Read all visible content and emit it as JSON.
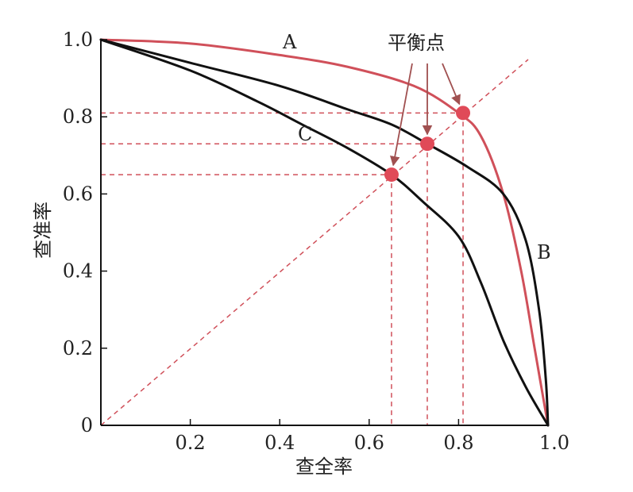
{
  "chart_data": {
    "type": "line",
    "xlabel": "查全率",
    "ylabel": "查准率",
    "xlim": [
      0,
      1
    ],
    "ylim": [
      0,
      1
    ],
    "x_ticks": [
      "0.2",
      "0.4",
      "0.6",
      "0.8",
      "1.0"
    ],
    "y_ticks": [
      "0",
      "0.2",
      "0.4",
      "0.6",
      "0.8",
      "1.0"
    ],
    "colors": {
      "A": "#d0505a",
      "B": "#111111",
      "C": "#111111",
      "guides": "#d0505a",
      "points": "#e04a58"
    },
    "series": [
      {
        "name": "A",
        "points": [
          [
            0,
            1.0
          ],
          [
            0.2,
            0.99
          ],
          [
            0.4,
            0.96
          ],
          [
            0.55,
            0.93
          ],
          [
            0.7,
            0.88
          ],
          [
            0.8,
            0.81
          ],
          [
            0.85,
            0.75
          ],
          [
            0.9,
            0.6
          ],
          [
            0.94,
            0.4
          ],
          [
            0.97,
            0.2
          ],
          [
            1.0,
            0
          ]
        ]
      },
      {
        "name": "B",
        "points": [
          [
            0,
            1.0
          ],
          [
            0.2,
            0.94
          ],
          [
            0.4,
            0.88
          ],
          [
            0.55,
            0.82
          ],
          [
            0.65,
            0.78
          ],
          [
            0.73,
            0.73
          ],
          [
            0.82,
            0.67
          ],
          [
            0.9,
            0.6
          ],
          [
            0.95,
            0.48
          ],
          [
            0.98,
            0.3
          ],
          [
            0.995,
            0.12
          ],
          [
            1.0,
            0
          ]
        ]
      },
      {
        "name": "C",
        "points": [
          [
            0,
            1.0
          ],
          [
            0.2,
            0.92
          ],
          [
            0.35,
            0.84
          ],
          [
            0.45,
            0.78
          ],
          [
            0.55,
            0.72
          ],
          [
            0.65,
            0.65
          ],
          [
            0.72,
            0.58
          ],
          [
            0.8,
            0.49
          ],
          [
            0.85,
            0.37
          ],
          [
            0.9,
            0.22
          ],
          [
            0.95,
            0.1
          ],
          [
            1.0,
            0
          ]
        ]
      }
    ],
    "diagonal": [
      [
        0,
        0
      ],
      [
        1,
        1
      ]
    ],
    "break_even_points": [
      {
        "curve": "A",
        "value": 0.81
      },
      {
        "curve": "B",
        "value": 0.73
      },
      {
        "curve": "C",
        "value": 0.65
      }
    ],
    "annotation": "平衡点"
  }
}
